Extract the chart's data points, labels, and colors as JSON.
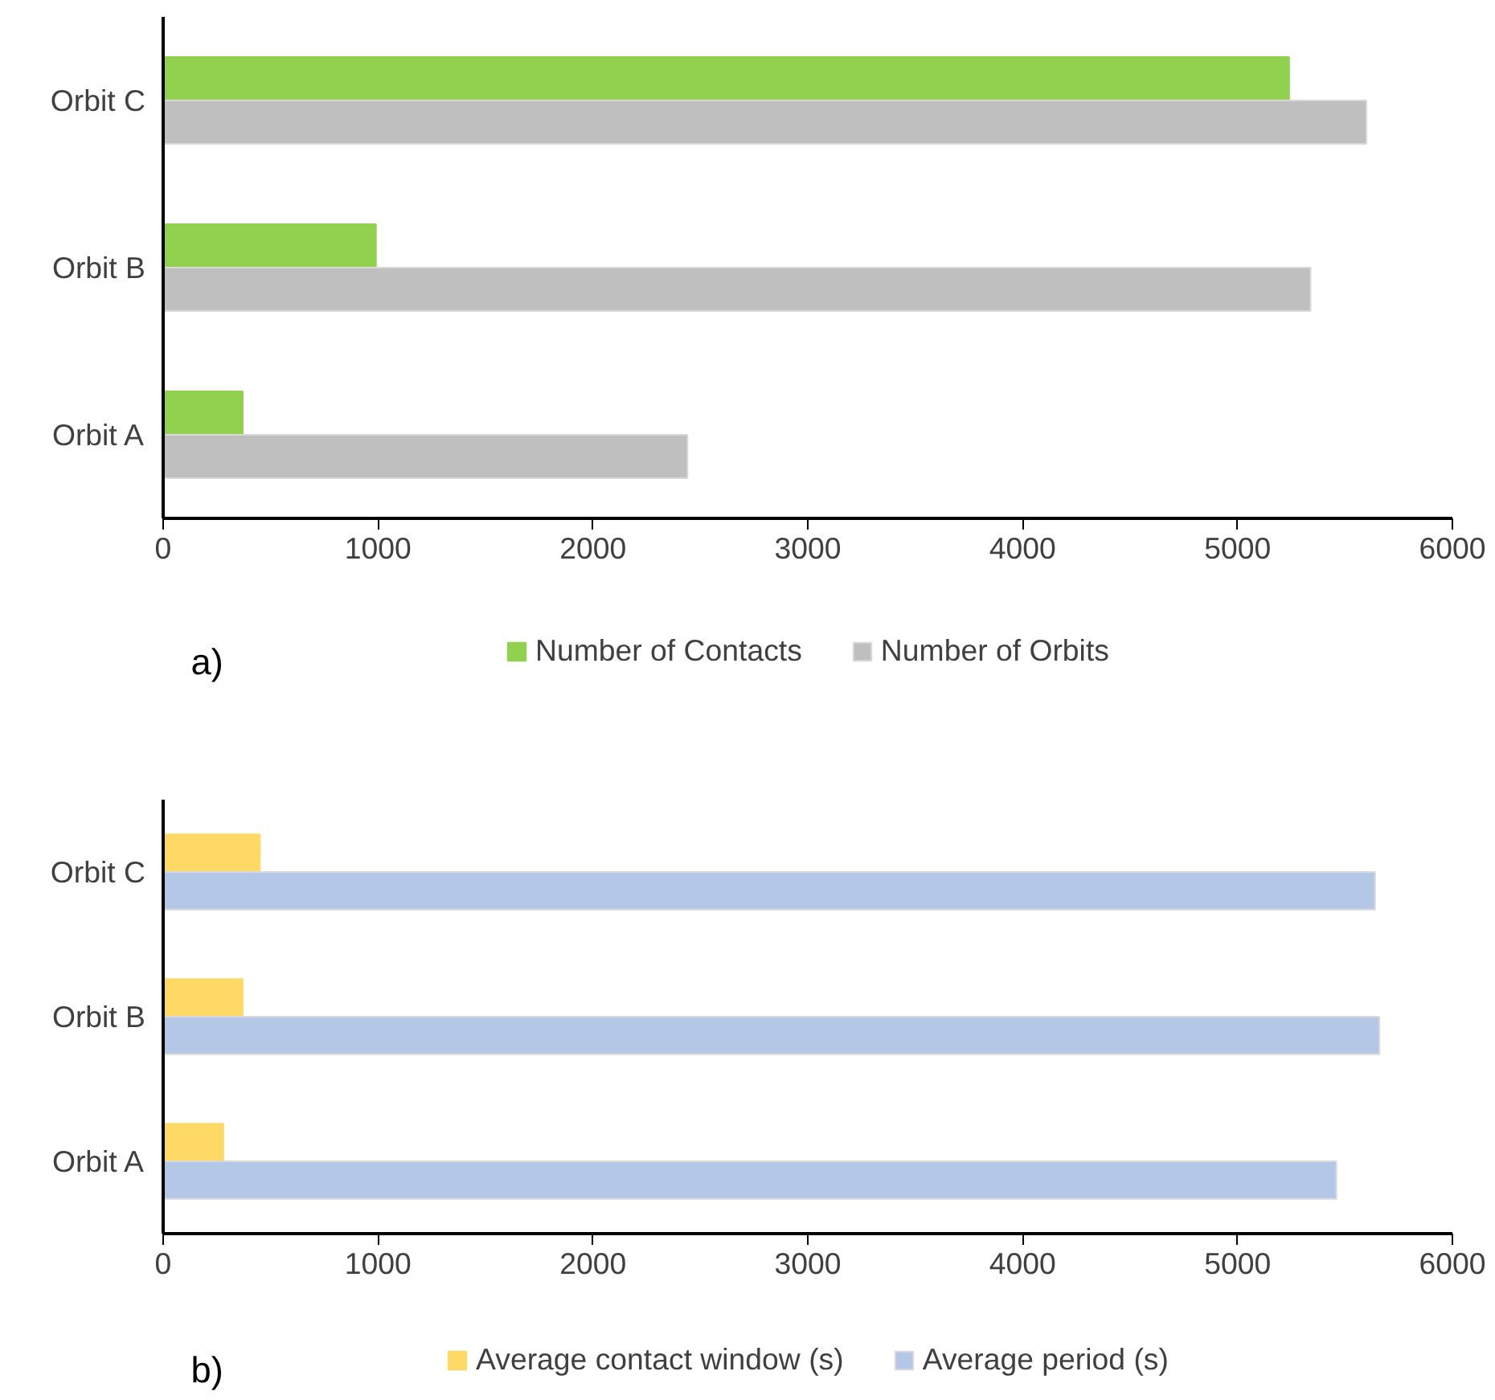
{
  "chart_data": [
    {
      "type": "bar",
      "orientation": "horizontal",
      "categories": [
        "Orbit C",
        "Orbit B",
        "Orbit A"
      ],
      "series": [
        {
          "name": "Number of Contacts",
          "color": "#92d050",
          "values": [
            5240,
            990,
            370
          ]
        },
        {
          "name": "Number of Orbits",
          "color": "#bfbfbf",
          "values": [
            5600,
            5340,
            2440
          ]
        }
      ],
      "xlim": [
        0,
        6000
      ],
      "xticks": [
        0,
        1000,
        2000,
        3000,
        4000,
        5000,
        6000
      ],
      "grid": false,
      "legend": "bottom",
      "annotations": [
        "a)"
      ]
    },
    {
      "type": "bar",
      "orientation": "horizontal",
      "categories": [
        "Orbit C",
        "Orbit B",
        "Orbit A"
      ],
      "series": [
        {
          "name": "Average contact window (s)",
          "color": "#ffd966",
          "values": [
            450,
            370,
            280
          ]
        },
        {
          "name": "Average period (s)",
          "color": "#b4c7e7",
          "values": [
            5640,
            5660,
            5460
          ]
        }
      ],
      "xlim": [
        0,
        6000
      ],
      "xticks": [
        0,
        1000,
        2000,
        3000,
        4000,
        5000,
        6000
      ],
      "grid": false,
      "legend": "bottom",
      "annotations": [
        "b)"
      ]
    }
  ]
}
